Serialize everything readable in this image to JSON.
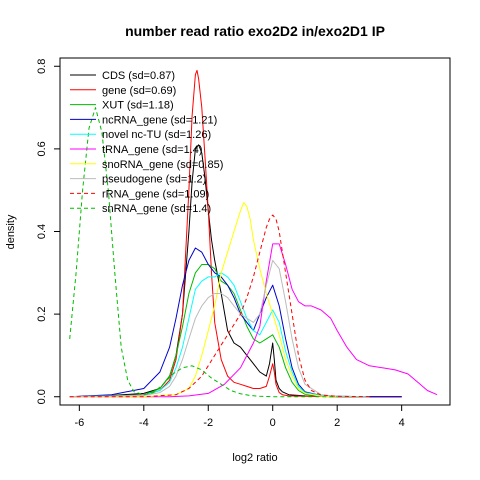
{
  "chart_data": {
    "type": "line",
    "title": "number read ratio exo2D2 in/exo2D1 IP",
    "xlabel": "log2 ratio",
    "ylabel": "density",
    "xlim": [
      -6.6,
      5.5
    ],
    "ylim": [
      -0.02,
      0.82
    ],
    "x_ticks": [
      -6,
      -4,
      -2,
      0,
      2,
      4
    ],
    "y_ticks": [
      0.0,
      0.2,
      0.4,
      0.6,
      0.8
    ],
    "x_tick_labels": [
      "-6",
      "-4",
      "-2",
      "0",
      "2",
      "4"
    ],
    "y_tick_labels": [
      "0.0",
      "0.2",
      "0.4",
      "0.6",
      "0.8"
    ],
    "grid": false,
    "legend_position": "top-left",
    "series": [
      {
        "name": "CDS (sd=0.87)",
        "color": "#000000",
        "dash": "solid",
        "x": [
          -6.3,
          -5,
          -4,
          -3.5,
          -3.2,
          -3.0,
          -2.8,
          -2.6,
          -2.5,
          -2.4,
          -2.3,
          -2.2,
          -2.1,
          -2.0,
          -1.9,
          -1.8,
          -1.6,
          -1.4,
          -1.2,
          -1.0,
          -0.8,
          -0.6,
          -0.4,
          -0.2,
          -0.1,
          0.0,
          0.05,
          0.1,
          0.2,
          0.3,
          0.5,
          1.0,
          2.0,
          4.0
        ],
        "y": [
          0.0,
          0.003,
          0.008,
          0.02,
          0.05,
          0.1,
          0.2,
          0.4,
          0.52,
          0.6,
          0.61,
          0.59,
          0.53,
          0.45,
          0.38,
          0.33,
          0.25,
          0.16,
          0.13,
          0.12,
          0.1,
          0.08,
          0.06,
          0.05,
          0.08,
          0.13,
          0.09,
          0.04,
          0.02,
          0.012,
          0.005,
          0.002,
          0.0,
          0.0
        ]
      },
      {
        "name": "gene (sd=0.69)",
        "color": "#ff0000",
        "dash": "solid",
        "x": [
          -6.3,
          -5,
          -4,
          -3.5,
          -3.2,
          -3.0,
          -2.8,
          -2.6,
          -2.5,
          -2.4,
          -2.35,
          -2.3,
          -2.2,
          -2.1,
          -2.0,
          -1.9,
          -1.8,
          -1.6,
          -1.4,
          -1.2,
          -1.0,
          -0.8,
          -0.6,
          -0.4,
          -0.2,
          -0.1,
          0.0,
          0.05,
          0.1,
          0.2,
          0.3,
          0.5,
          1.0,
          2.0,
          4.0
        ],
        "y": [
          0.0,
          0.002,
          0.005,
          0.015,
          0.04,
          0.09,
          0.2,
          0.5,
          0.68,
          0.78,
          0.79,
          0.77,
          0.7,
          0.58,
          0.45,
          0.3,
          0.18,
          0.09,
          0.05,
          0.035,
          0.03,
          0.025,
          0.02,
          0.02,
          0.025,
          0.05,
          0.08,
          0.06,
          0.03,
          0.01,
          0.005,
          0.002,
          0.001,
          0.0,
          0.0
        ]
      },
      {
        "name": "XUT (sd=1.18)",
        "color": "#00bb00",
        "dash": "solid",
        "x": [
          -6.3,
          -4,
          -3.5,
          -3.2,
          -3.0,
          -2.8,
          -2.6,
          -2.4,
          -2.2,
          -2.0,
          -1.8,
          -1.6,
          -1.4,
          -1.2,
          -1.0,
          -0.8,
          -0.6,
          -0.4,
          -0.2,
          0.0,
          0.2,
          0.4,
          0.6,
          0.8,
          1.0,
          1.5,
          2.0,
          3.0
        ],
        "y": [
          0.0,
          0.004,
          0.02,
          0.05,
          0.1,
          0.17,
          0.25,
          0.3,
          0.32,
          0.32,
          0.31,
          0.28,
          0.27,
          0.25,
          0.21,
          0.17,
          0.14,
          0.13,
          0.14,
          0.15,
          0.12,
          0.07,
          0.035,
          0.015,
          0.006,
          0.002,
          0.0,
          0.0
        ]
      },
      {
        "name": "ncRNA_gene (sd=1.21)",
        "color": "#0000cc",
        "dash": "solid",
        "x": [
          -6.3,
          -5,
          -4,
          -3.5,
          -3.2,
          -3.0,
          -2.8,
          -2.6,
          -2.4,
          -2.2,
          -2.0,
          -1.8,
          -1.6,
          -1.4,
          -1.2,
          -1.0,
          -0.8,
          -0.6,
          -0.4,
          -0.2,
          0.0,
          0.2,
          0.4,
          0.6,
          0.8,
          1.0,
          1.5,
          2.0,
          3.0,
          4.0
        ],
        "y": [
          0.0,
          0.005,
          0.02,
          0.06,
          0.12,
          0.19,
          0.27,
          0.33,
          0.36,
          0.35,
          0.32,
          0.3,
          0.29,
          0.27,
          0.24,
          0.2,
          0.18,
          0.16,
          0.2,
          0.24,
          0.27,
          0.22,
          0.14,
          0.07,
          0.03,
          0.012,
          0.003,
          0.001,
          0.0,
          0.0
        ]
      },
      {
        "name": "novel nc-TU (sd=1.26)",
        "color": "#00ffff",
        "dash": "solid",
        "x": [
          -6.3,
          -4,
          -3.5,
          -3.2,
          -3.0,
          -2.8,
          -2.6,
          -2.4,
          -2.2,
          -2.0,
          -1.8,
          -1.6,
          -1.4,
          -1.2,
          -1.0,
          -0.8,
          -0.6,
          -0.4,
          -0.2,
          0.0,
          0.2,
          0.4,
          0.6,
          0.8,
          1.0,
          1.5,
          2.0,
          3.0
        ],
        "y": [
          0.0,
          0.003,
          0.015,
          0.035,
          0.07,
          0.12,
          0.19,
          0.26,
          0.28,
          0.29,
          0.29,
          0.3,
          0.29,
          0.27,
          0.23,
          0.19,
          0.16,
          0.15,
          0.18,
          0.21,
          0.18,
          0.11,
          0.06,
          0.025,
          0.01,
          0.003,
          0.001,
          0.0
        ]
      },
      {
        "name": "tRNA_gene (sd=1.4)",
        "color": "#ff00ff",
        "dash": "solid",
        "x": [
          -6.3,
          -4,
          -3.2,
          -2.6,
          -2.0,
          -1.5,
          -1.0,
          -0.8,
          -0.6,
          -0.4,
          -0.2,
          0.0,
          0.2,
          0.4,
          0.6,
          0.8,
          1.0,
          1.2,
          1.5,
          1.8,
          2.0,
          2.3,
          2.6,
          3.0,
          3.4,
          3.8,
          4.2,
          4.5,
          4.8,
          5.1
        ],
        "y": [
          0.0,
          0.0,
          0.0,
          0.002,
          0.008,
          0.03,
          0.07,
          0.1,
          0.13,
          0.17,
          0.28,
          0.37,
          0.37,
          0.32,
          0.26,
          0.23,
          0.22,
          0.22,
          0.21,
          0.19,
          0.16,
          0.12,
          0.09,
          0.075,
          0.07,
          0.065,
          0.055,
          0.035,
          0.015,
          0.005
        ]
      },
      {
        "name": "snoRNA_gene (sd=0.85)",
        "color": "#ffff00",
        "dash": "solid",
        "x": [
          -6.3,
          -4,
          -3.0,
          -2.6,
          -2.4,
          -2.2,
          -2.0,
          -1.8,
          -1.6,
          -1.4,
          -1.2,
          -1.0,
          -0.9,
          -0.8,
          -0.7,
          -0.6,
          -0.4,
          -0.2,
          0.0,
          0.2,
          0.4,
          0.6,
          0.8,
          1.0,
          1.5,
          2.0
        ],
        "y": [
          0.0,
          0.0,
          0.005,
          0.02,
          0.05,
          0.1,
          0.16,
          0.22,
          0.3,
          0.35,
          0.4,
          0.45,
          0.47,
          0.46,
          0.43,
          0.38,
          0.31,
          0.25,
          0.2,
          0.15,
          0.09,
          0.05,
          0.02,
          0.008,
          0.001,
          0.0
        ]
      },
      {
        "name": "pseudogene (sd=1.2)",
        "color": "#bbbbbb",
        "dash": "solid",
        "x": [
          -6.3,
          -4,
          -3.5,
          -3.2,
          -3.0,
          -2.8,
          -2.6,
          -2.4,
          -2.2,
          -2.0,
          -1.8,
          -1.6,
          -1.4,
          -1.2,
          -1.0,
          -0.8,
          -0.6,
          -0.4,
          -0.2,
          0.0,
          0.2,
          0.4,
          0.6,
          0.8,
          1.0,
          1.5,
          2.0,
          3.0
        ],
        "y": [
          0.0,
          0.003,
          0.01,
          0.025,
          0.05,
          0.09,
          0.14,
          0.19,
          0.22,
          0.24,
          0.25,
          0.25,
          0.24,
          0.22,
          0.2,
          0.19,
          0.18,
          0.2,
          0.27,
          0.33,
          0.31,
          0.23,
          0.14,
          0.07,
          0.03,
          0.005,
          0.001,
          0.0
        ]
      },
      {
        "name": "rRNA_gene (sd=1.09)",
        "color": "#ff0000",
        "dash": "dashed",
        "x": [
          -6.3,
          -4,
          -3.0,
          -2.6,
          -2.2,
          -1.8,
          -1.4,
          -1.0,
          -0.8,
          -0.6,
          -0.4,
          -0.2,
          -0.1,
          0.0,
          0.1,
          0.2,
          0.4,
          0.6,
          0.8,
          1.0,
          1.2,
          1.5,
          2.0,
          3.0
        ],
        "y": [
          0.0,
          0.0,
          0.005,
          0.02,
          0.05,
          0.1,
          0.15,
          0.2,
          0.24,
          0.29,
          0.35,
          0.41,
          0.43,
          0.44,
          0.43,
          0.4,
          0.3,
          0.2,
          0.1,
          0.04,
          0.015,
          0.004,
          0.001,
          0.0
        ]
      },
      {
        "name": "snRNA_gene (sd=1.4)",
        "color": "#00bb00",
        "dash": "dashed",
        "x": [
          -6.3,
          -6.1,
          -5.9,
          -5.7,
          -5.5,
          -5.3,
          -5.1,
          -4.9,
          -4.7,
          -4.5,
          -4.3,
          -4.0,
          -3.7,
          -3.4,
          -3.1,
          -2.8,
          -2.5,
          -2.2,
          -1.9,
          -1.6,
          -1.3,
          -1.0,
          -0.7,
          -0.4,
          0.0,
          0.5,
          1.0,
          2.0
        ],
        "y": [
          0.14,
          0.3,
          0.5,
          0.65,
          0.7,
          0.64,
          0.5,
          0.3,
          0.12,
          0.04,
          0.012,
          0.005,
          0.01,
          0.03,
          0.055,
          0.07,
          0.075,
          0.065,
          0.045,
          0.03,
          0.015,
          0.007,
          0.003,
          0.001,
          0.0,
          0.0,
          0.0,
          0.0
        ]
      }
    ]
  }
}
